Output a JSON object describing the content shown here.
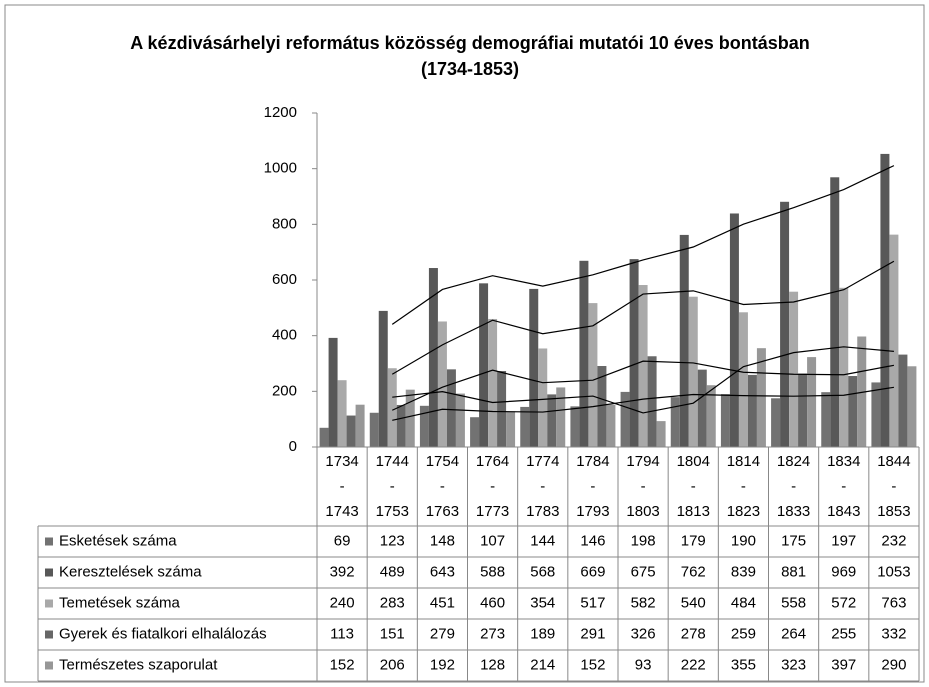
{
  "chart_data": {
    "type": "bar",
    "title": "A kézdivásárhelyi református közösség demográfiai mutatói 10 éves bontásban (1734-1853)",
    "categories": [
      "1734 - 1743",
      "1744 - 1753",
      "1754 - 1763",
      "1764 - 1773",
      "1774 - 1783",
      "1784 - 1793",
      "1794 - 1803",
      "1804 - 1813",
      "1814 - 1823",
      "1824 - 1833",
      "1834 - 1843",
      "1844 - 1853"
    ],
    "series": [
      {
        "name": "Esketések száma",
        "color": "#727272",
        "values": [
          69,
          123,
          148,
          107,
          144,
          146,
          198,
          179,
          190,
          175,
          197,
          232
        ]
      },
      {
        "name": "Keresztelések száma",
        "color": "#585858",
        "values": [
          392,
          489,
          643,
          588,
          568,
          669,
          675,
          762,
          839,
          881,
          969,
          1053
        ]
      },
      {
        "name": "Temetések száma",
        "color": "#a9a9a9",
        "values": [
          240,
          283,
          451,
          460,
          354,
          517,
          582,
          540,
          484,
          558,
          572,
          763
        ]
      },
      {
        "name": "Gyerek és fiatalkori elhalálozás",
        "color": "#676767",
        "values": [
          113,
          151,
          279,
          273,
          189,
          291,
          326,
          278,
          259,
          264,
          255,
          332
        ]
      },
      {
        "name": "Természetes szaporulat",
        "color": "#979797",
        "values": [
          152,
          206,
          192,
          128,
          214,
          152,
          93,
          222,
          355,
          323,
          397,
          290
        ]
      }
    ],
    "ylim": [
      0,
      1200
    ],
    "yticks": [
      0,
      200,
      400,
      600,
      800,
      1000,
      1200
    ],
    "trendline": "moving average",
    "trendline_period": 2,
    "data_table": true
  }
}
